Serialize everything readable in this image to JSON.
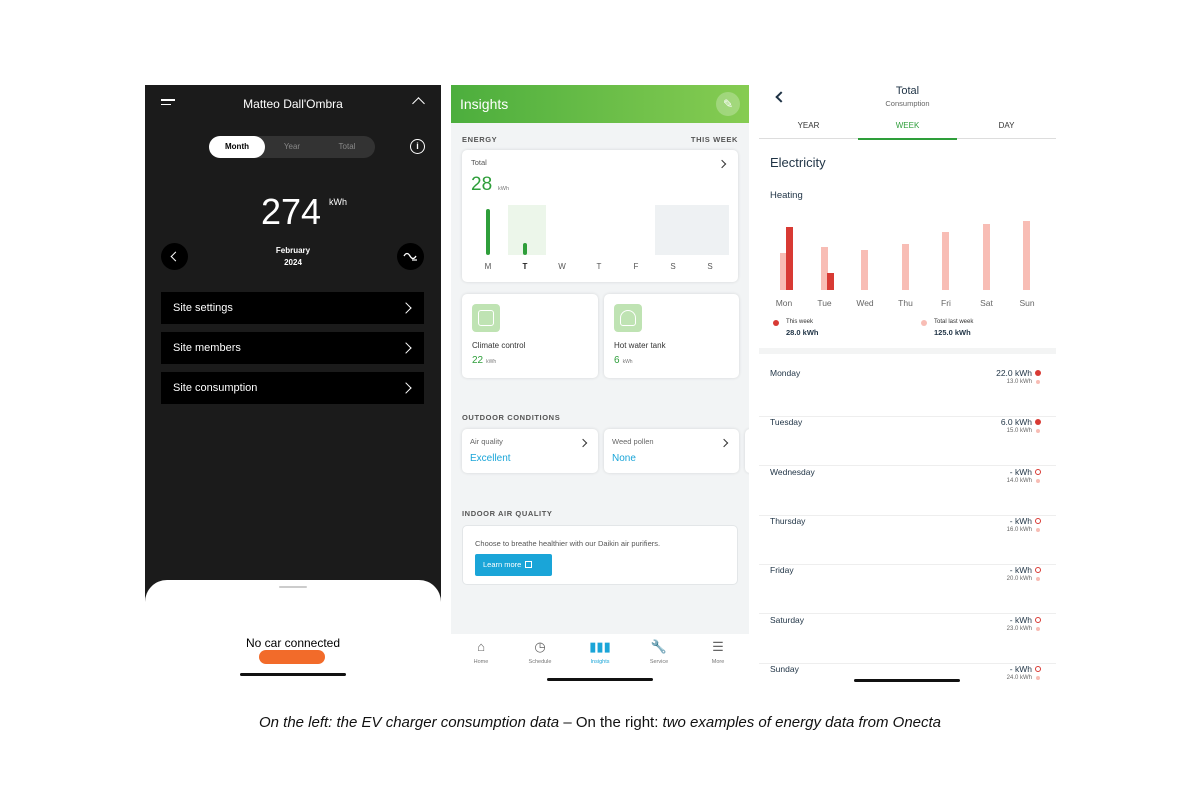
{
  "ev": {
    "user_name": "Matteo Dall'Ombra",
    "segments": [
      "Month",
      "Year",
      "Total"
    ],
    "selected_segment": "Month",
    "value": "274",
    "unit": "kWh",
    "period_month": "February",
    "period_year": "2024",
    "rows": [
      "Site settings",
      "Site members",
      "Site consumption"
    ],
    "bottom_sheet_title": "No car connected",
    "accent_color": "#f26b2a"
  },
  "insights": {
    "title": "Insights",
    "energy_label": "ENERGY",
    "period_label": "THIS WEEK",
    "total_label": "Total",
    "total_value": "28",
    "total_unit": "kWh",
    "day_labels": [
      "M",
      "T",
      "W",
      "T",
      "F",
      "S",
      "S"
    ],
    "climate": {
      "name": "Climate control",
      "value": "22",
      "unit": "kWh"
    },
    "hotwater": {
      "name": "Hot water tank",
      "value": "6",
      "unit": "kWh"
    },
    "outdoor_label": "OUTDOOR CONDITIONS",
    "air_quality": {
      "name": "Air quality",
      "value": "Excellent"
    },
    "weed_pollen": {
      "name": "Weed pollen",
      "value": "None"
    },
    "iaq_label": "INDOOR AIR QUALITY",
    "iaq_text": "Choose to breathe healthier with our Daikin air purifiers.",
    "learn_more": "Learn more",
    "tabs": [
      {
        "label": "Home",
        "icon": "home-icon"
      },
      {
        "label": "Schedule",
        "icon": "clock-icon"
      },
      {
        "label": "Insights",
        "icon": "bar-chart-icon"
      },
      {
        "label": "Service",
        "icon": "wrench-icon"
      },
      {
        "label": "More",
        "icon": "menu-icon"
      }
    ],
    "accent_color": "#2e9e3a"
  },
  "total": {
    "title": "Total",
    "subtitle": "Consumption",
    "tabs": [
      "YEAR",
      "WEEK",
      "DAY"
    ],
    "selected_tab": "WEEK",
    "section": "Electricity",
    "subsection": "Heating",
    "legend_this": "This week",
    "legend_this_value": "28.0 kWh",
    "legend_last": "Total last week",
    "legend_last_value": "125.0 kWh",
    "days": [
      {
        "name": "Monday",
        "value": "22.0 kWh",
        "prev": "13.0 kWh"
      },
      {
        "name": "Tuesday",
        "value": "6.0 kWh",
        "prev": "15.0 kWh"
      },
      {
        "name": "Wednesday",
        "value": "- kWh",
        "prev": "14.0 kWh"
      },
      {
        "name": "Thursday",
        "value": "- kWh",
        "prev": "16.0 kWh"
      },
      {
        "name": "Friday",
        "value": "- kWh",
        "prev": "20.0 kWh"
      },
      {
        "name": "Saturday",
        "value": "- kWh",
        "prev": "23.0 kWh"
      },
      {
        "name": "Sunday",
        "value": "- kWh",
        "prev": "24.0 kWh"
      }
    ],
    "this_color": "#d83a34",
    "last_color": "#f8bdb5"
  },
  "chart_data": [
    {
      "type": "bar",
      "categories": [
        "M",
        "T",
        "W",
        "T",
        "F",
        "S",
        "S"
      ],
      "values": [
        22,
        6,
        0,
        0,
        0,
        0,
        0
      ],
      "ylim": [
        0,
        24
      ]
    },
    {
      "type": "bar",
      "categories": [
        "Mon",
        "Tue",
        "Wed",
        "Thu",
        "Fri",
        "Sat",
        "Sun"
      ],
      "series": [
        {
          "name": "This week",
          "values": [
            22,
            6,
            null,
            null,
            null,
            null,
            null
          ]
        },
        {
          "name": "Total last week",
          "values": [
            13,
            15,
            14,
            16,
            20,
            23,
            24
          ]
        }
      ],
      "ylim": [
        0,
        25
      ]
    }
  ],
  "caption": {
    "left": "On the left: the EV charger consumption data",
    "sep": " – On the right: ",
    "right": "two examples of energy data from Onecta"
  }
}
